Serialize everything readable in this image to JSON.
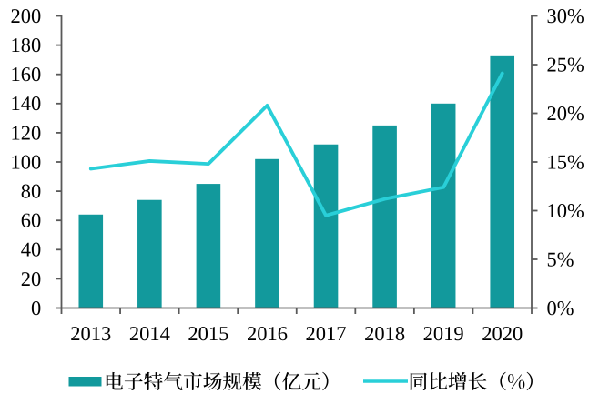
{
  "page": {
    "background": "#FFFFFF"
  },
  "chart_data": {
    "type": "bar",
    "subtype": "combo-bar-line",
    "title": "",
    "categories": [
      "2013",
      "2014",
      "2015",
      "2016",
      "2017",
      "2018",
      "2019",
      "2020"
    ],
    "series": [
      {
        "name": "电子特气市场规模（亿元）",
        "type": "bar",
        "axis": "left",
        "values": [
          64,
          74,
          85,
          102,
          112,
          125,
          140,
          173
        ],
        "color": "#12999C"
      },
      {
        "name": "同比增长（%）",
        "type": "line",
        "axis": "right",
        "values": [
          14.3,
          15.1,
          14.8,
          20.8,
          9.5,
          11.2,
          12.4,
          24.1
        ],
        "color": "#29CFD8"
      }
    ],
    "left_axis": {
      "min": 0,
      "max": 200,
      "step": 20,
      "tick_labels": [
        "0",
        "20",
        "40",
        "60",
        "80",
        "100",
        "120",
        "140",
        "160",
        "180",
        "200"
      ]
    },
    "right_axis": {
      "min": 0,
      "max": 30,
      "step": 5,
      "tick_labels": [
        "0%",
        "5%",
        "10%",
        "15%",
        "20%",
        "25%",
        "30%"
      ]
    },
    "xlabel": "",
    "ylabel": "",
    "grid": false,
    "legend_position": "bottom"
  },
  "legend": {
    "items": [
      {
        "label": "电子特气市场规模（亿元）",
        "swatch": "bar-swatch"
      },
      {
        "label": "同比增长（%）",
        "swatch": "line-swatch"
      }
    ]
  },
  "colors": {
    "bar": "#12999C",
    "line": "#29CFD8",
    "axis": "#595959",
    "text": "#000000",
    "background": "#FFFFFF"
  }
}
